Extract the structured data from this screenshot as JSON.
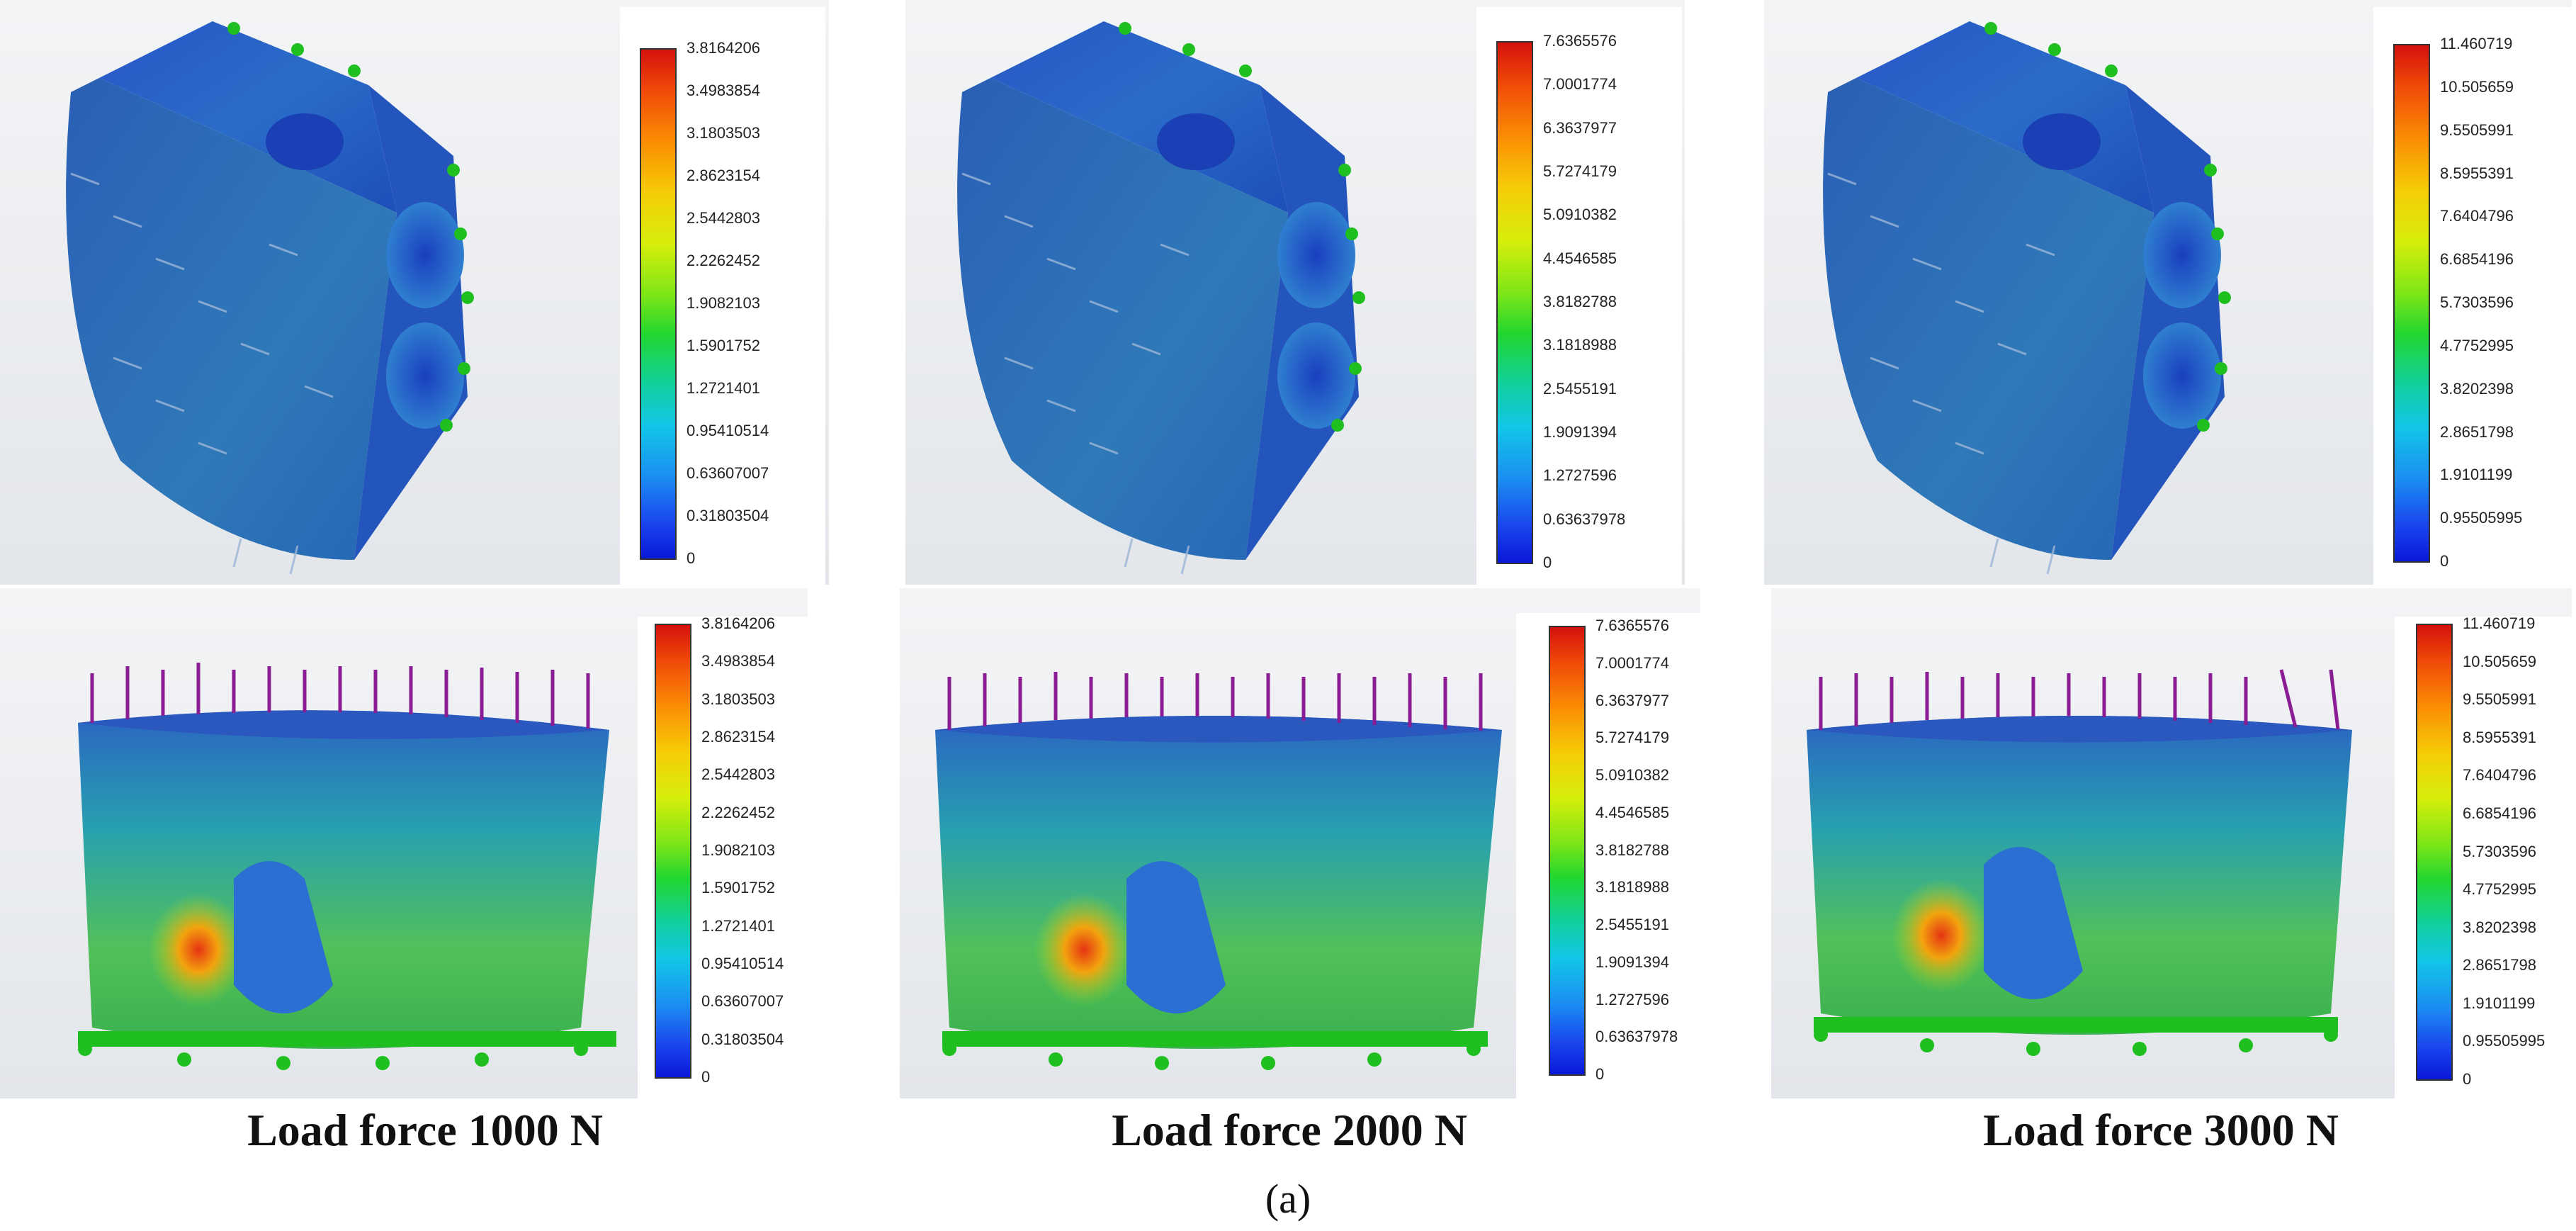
{
  "panels": [
    {
      "ticks": [
        "3.8164206",
        "3.4983854",
        "3.1803503",
        "2.8623154",
        "2.5442803",
        "2.2262452",
        "1.9082103",
        "1.5901752",
        "1.2721401",
        "0.95410514",
        "0.63607007",
        "0.31803504",
        "0"
      ]
    },
    {
      "ticks": [
        "7.6365576",
        "7.0001774",
        "6.3637977",
        "5.7274179",
        "5.0910382",
        "4.4546585",
        "3.8182788",
        "3.1818988",
        "2.5455191",
        "1.9091394",
        "1.2727596",
        "0.63637978",
        "0"
      ]
    },
    {
      "ticks": [
        "11.460719",
        "10.505659",
        "9.5505991",
        "8.5955391",
        "7.6404796",
        "6.6854196",
        "5.7303596",
        "4.7752995",
        "3.8202398",
        "2.8651798",
        "1.9101199",
        "0.95505995",
        "0"
      ]
    }
  ],
  "captions": [
    "Load force 1000 N",
    "Load force 2000 N",
    "Load force 3000 N"
  ],
  "sublabel": "(a)",
  "colors": {
    "pressure_arrows": "#8a1d94",
    "fixtures": "#1fbf1f",
    "model_base": "#2a62c8",
    "background": "#e9ebee"
  }
}
